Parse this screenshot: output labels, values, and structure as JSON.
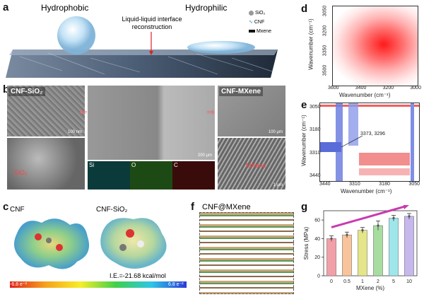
{
  "panel_labels": {
    "a": "a",
    "b": "b",
    "c": "c",
    "d": "d",
    "e": "e",
    "f": "f",
    "g": "g"
  },
  "panel_a": {
    "hydrophobic": "Hydrophobic",
    "hydrophilic": "Hydrophilic",
    "center_label": "Liquid-liquid interface reconstruction",
    "legend": [
      {
        "label": "SiO₂",
        "icon": "sphere-icon"
      },
      {
        "label": "CNF",
        "icon": "fiber-icon"
      },
      {
        "label": "Mxene",
        "icon": "sheet-icon"
      }
    ]
  },
  "panel_b": {
    "left_title": "CNF-SiO₂",
    "right_title": "CNF-MXene",
    "scale_left_top": "100 nm",
    "scale_center": "200 μm",
    "scale_right_top": "100 μm",
    "scale_right_bottom": "1 μm",
    "left_bottom_label": "SiO₂",
    "right_bottom_label": "MXene",
    "eds": [
      "Si",
      "O",
      "C"
    ]
  },
  "panel_c": {
    "left_title": "CNF",
    "right_title": "CNF-SiO₂",
    "ie": "I.E.=-21.68 kcal/mol",
    "scale_min": "-6.8 e⁻²",
    "scale_max": "6.8 e⁻²"
  },
  "panel_d": {
    "xlabel": "Wavenumber (cm⁻¹)",
    "ylabel": "Wavenumber (cm⁻¹)",
    "xticks": [
      "3600",
      "3400",
      "3200",
      "3000"
    ],
    "yticks": [
      "3050",
      "3200",
      "3350",
      "3500"
    ]
  },
  "panel_e": {
    "xlabel": "Wavenumber (cm⁻¹)",
    "ylabel": "Wavenumber (cm⁻¹)",
    "xticks": [
      "3440",
      "3310",
      "3180",
      "3050"
    ],
    "yticks": [
      "3050",
      "3180",
      "3310",
      "3440"
    ],
    "annotation": "3373, 3296"
  },
  "panel_f": {
    "title": "CNF@MXene"
  },
  "chart_data": {
    "type": "bar",
    "categories": [
      "0",
      "0.5",
      "1",
      "2",
      "5",
      "10"
    ],
    "values": [
      40,
      44,
      49,
      54,
      62,
      64
    ],
    "errors": [
      3,
      3,
      3,
      5,
      3,
      3
    ],
    "xlabel": "MXene (%)",
    "ylabel": "Stress (MPa)",
    "ylim": [
      0,
      70
    ],
    "yticks": [
      "0",
      "20",
      "40",
      "60"
    ],
    "colors": [
      "#f2a0a8",
      "#f7c49b",
      "#e5e58a",
      "#a7dea0",
      "#9fe6ea",
      "#c6b7ec"
    ]
  }
}
